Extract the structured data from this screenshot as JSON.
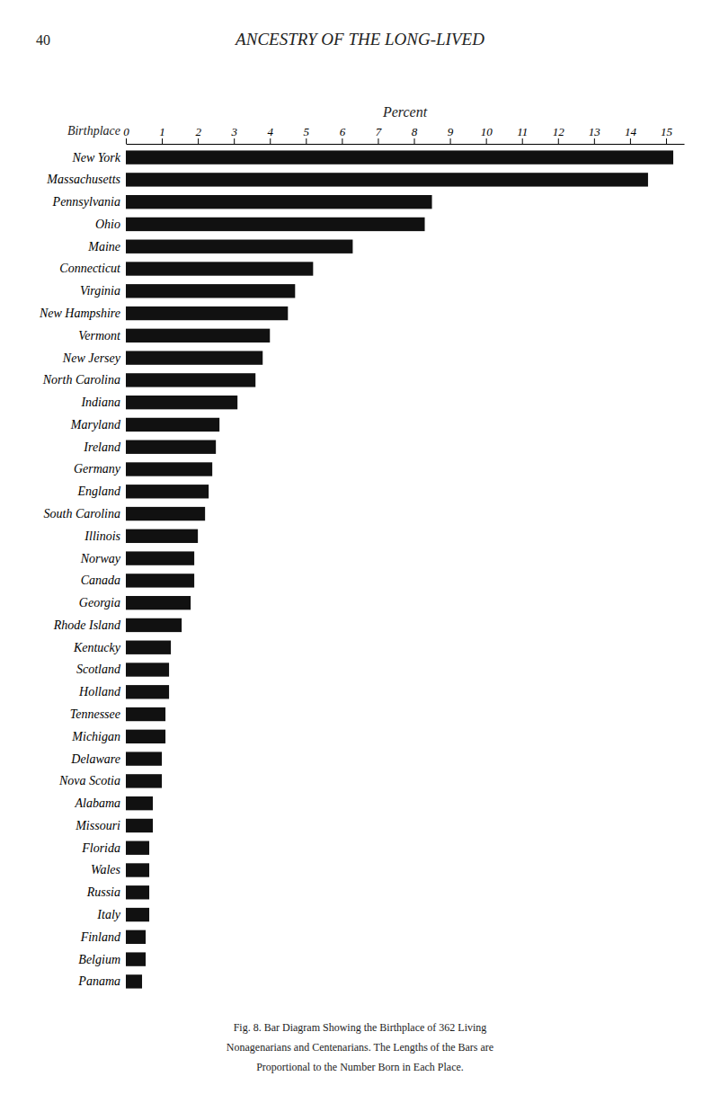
{
  "chart_data": {
    "type": "bar",
    "orientation": "horizontal",
    "title": "ANCESTRY OF THE LONG-LIVED",
    "page_number": "40",
    "xlabel": "Percent",
    "ylabel": "Birthplace",
    "caption": [
      "Fig. 8.  Bar Diagram Showing the Birthplace of 362 Living",
      "Nonagenarians and Centenarians.  The Lengths of the Bars are",
      "Proportional to the Number Born in Each Place."
    ],
    "color": "#111111",
    "grid": false,
    "xlim": [
      0,
      15.5
    ],
    "xticks": [
      0,
      1,
      2,
      3,
      4,
      5,
      6,
      7,
      8,
      9,
      10,
      11,
      12,
      13,
      14,
      15
    ],
    "categories": [
      "New York",
      "Massachusetts",
      "Pennsylvania",
      "Ohio",
      "Maine",
      "Connecticut",
      "Virginia",
      "New Hampshire",
      "Vermont",
      "New Jersey",
      "North Carolina",
      "Indiana",
      "Maryland",
      "Ireland",
      "Germany",
      "England",
      "South Carolina",
      "Illinois",
      "Norway",
      "Canada",
      "Georgia",
      "Rhode Island",
      "Kentucky",
      "Scotland",
      "Holland",
      "Tennessee",
      "Michigan",
      "Delaware",
      "Nova Scotia",
      "Alabama",
      "Missouri",
      "Florida",
      "Wales",
      "Russia",
      "Italy",
      "Finland",
      "Belgium",
      "Panama"
    ],
    "values": [
      15.2,
      14.5,
      8.5,
      8.3,
      6.3,
      5.2,
      4.7,
      4.5,
      4.0,
      3.8,
      3.6,
      3.1,
      2.6,
      2.5,
      2.4,
      2.3,
      2.2,
      2.0,
      1.9,
      1.9,
      1.8,
      1.55,
      1.25,
      1.2,
      1.2,
      1.1,
      1.1,
      1.0,
      1.0,
      0.75,
      0.75,
      0.65,
      0.65,
      0.65,
      0.65,
      0.55,
      0.55,
      0.45
    ]
  }
}
